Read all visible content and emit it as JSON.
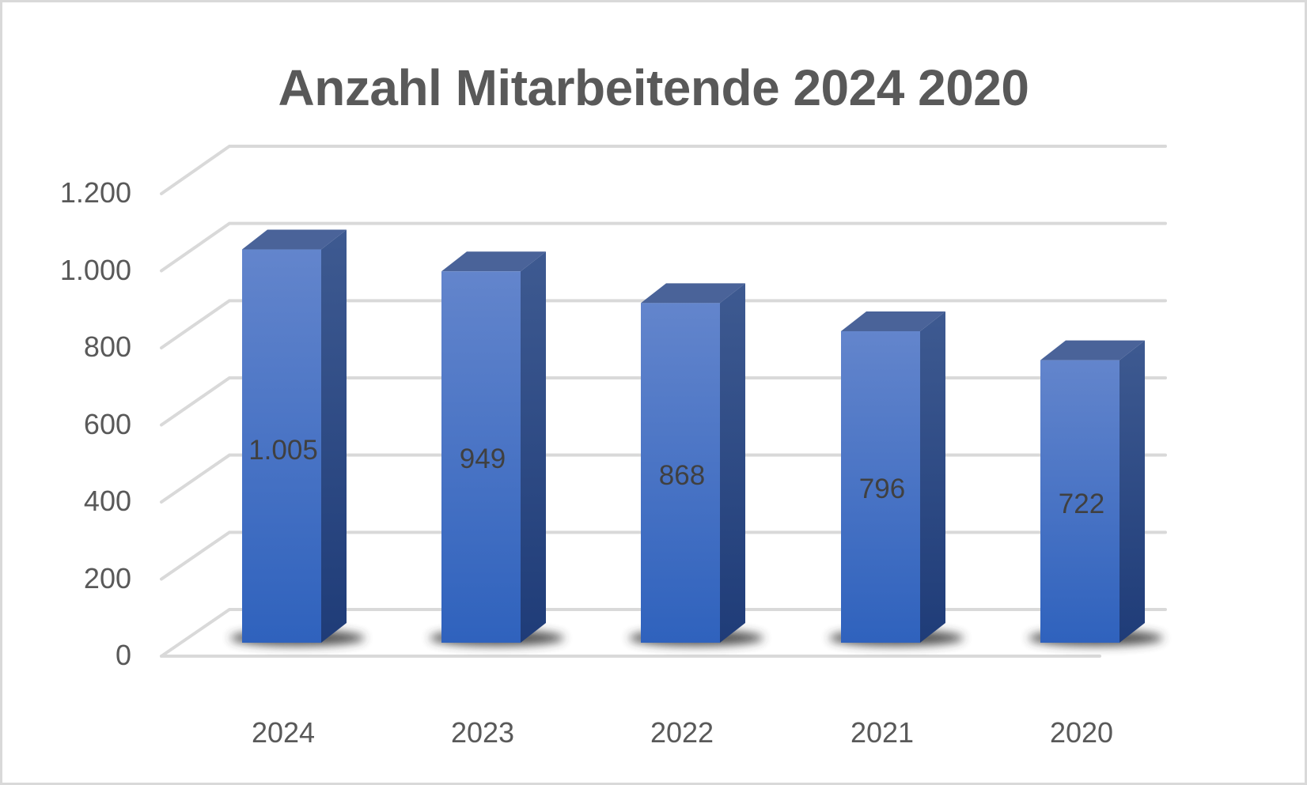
{
  "chart_data": {
    "type": "bar",
    "style": "3d-column",
    "title": "Anzahl Mitarbeitende 2024 2020",
    "xlabel": "",
    "ylabel": "",
    "categories": [
      "2024",
      "2023",
      "2022",
      "2021",
      "2020"
    ],
    "values": [
      1005,
      949,
      868,
      796,
      722
    ],
    "data_labels": [
      "1.005",
      "949",
      "868",
      "796",
      "722"
    ],
    "ylim": [
      0,
      1200
    ],
    "yticks": [
      0,
      200,
      400,
      600,
      800,
      1000,
      1200
    ],
    "ytick_labels": [
      "0",
      "200",
      "400",
      "600",
      "800",
      "1.000",
      "1.200"
    ],
    "grid": true,
    "legend": null,
    "colors": {
      "bar_front_top": "#6385cc",
      "bar_front_bottom": "#2f62bd",
      "bar_side": "#2b4a8a",
      "bar_top": "#4a6399",
      "gridline": "#d9d9d9",
      "text": "#595959",
      "title": "#595959"
    }
  }
}
